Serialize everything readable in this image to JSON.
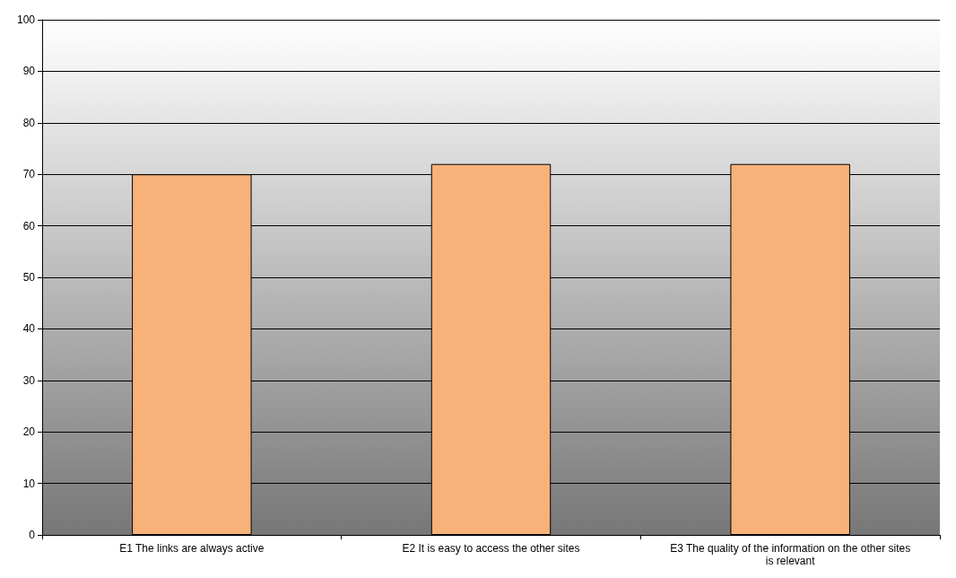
{
  "chart_data": {
    "type": "bar",
    "categories": [
      "E1 The links are always active",
      "E2 It is easy to access the other sites",
      "E3 The quality of the information on the other sites is relevant"
    ],
    "values": [
      70,
      72,
      72
    ],
    "color": "#f7b27a",
    "ylim": [
      0,
      100
    ],
    "yticks": [
      0,
      10,
      20,
      30,
      40,
      50,
      60,
      70,
      80,
      90,
      100
    ],
    "grid": "y"
  }
}
